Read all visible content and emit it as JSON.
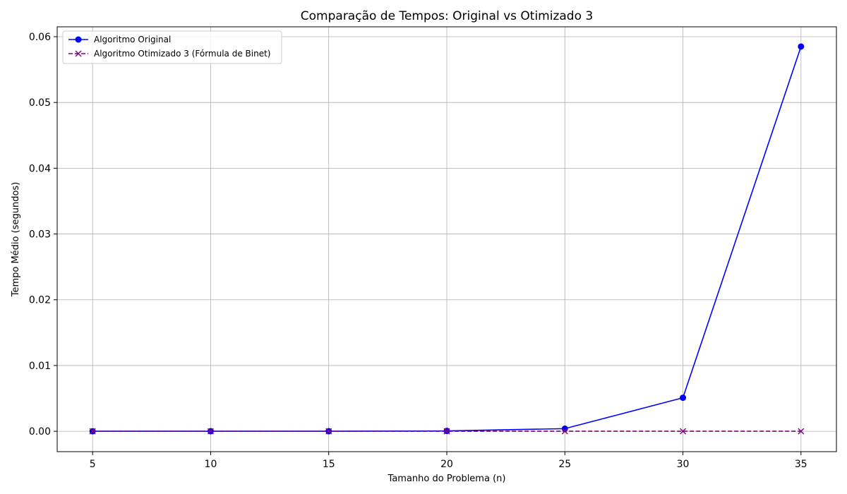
{
  "chart_data": {
    "type": "line",
    "title": "Comparação de Tempos: Original vs Otimizado 3",
    "xlabel": "Tamanho do Problema (n)",
    "ylabel": "Tempo Médio (segundos)",
    "x": [
      5,
      10,
      15,
      20,
      25,
      30,
      35
    ],
    "xlim": [
      3.5,
      36.5
    ],
    "ylim": [
      -0.0031,
      0.0615
    ],
    "x_ticks": [
      "5",
      "10",
      "15",
      "20",
      "25",
      "30",
      "35"
    ],
    "y_ticks": [
      "0.00",
      "0.01",
      "0.02",
      "0.03",
      "0.04",
      "0.05",
      "0.06"
    ],
    "grid": true,
    "legend_position": "top-left",
    "series": [
      {
        "name": "Algoritmo Original",
        "values": [
          1e-06,
          8e-06,
          1e-05,
          5e-05,
          0.0004,
          0.0051,
          0.0585
        ],
        "color": "#0000ff",
        "line_style": "solid",
        "marker": "circle"
      },
      {
        "name": "Algoritmo Otimizado 3 (Fórmula de Binet)",
        "values": [
          3e-07,
          3e-07,
          3e-07,
          3e-07,
          3e-07,
          3e-07,
          3e-07
        ],
        "color": "#800080",
        "line_style": "dashed",
        "marker": "x"
      }
    ]
  }
}
